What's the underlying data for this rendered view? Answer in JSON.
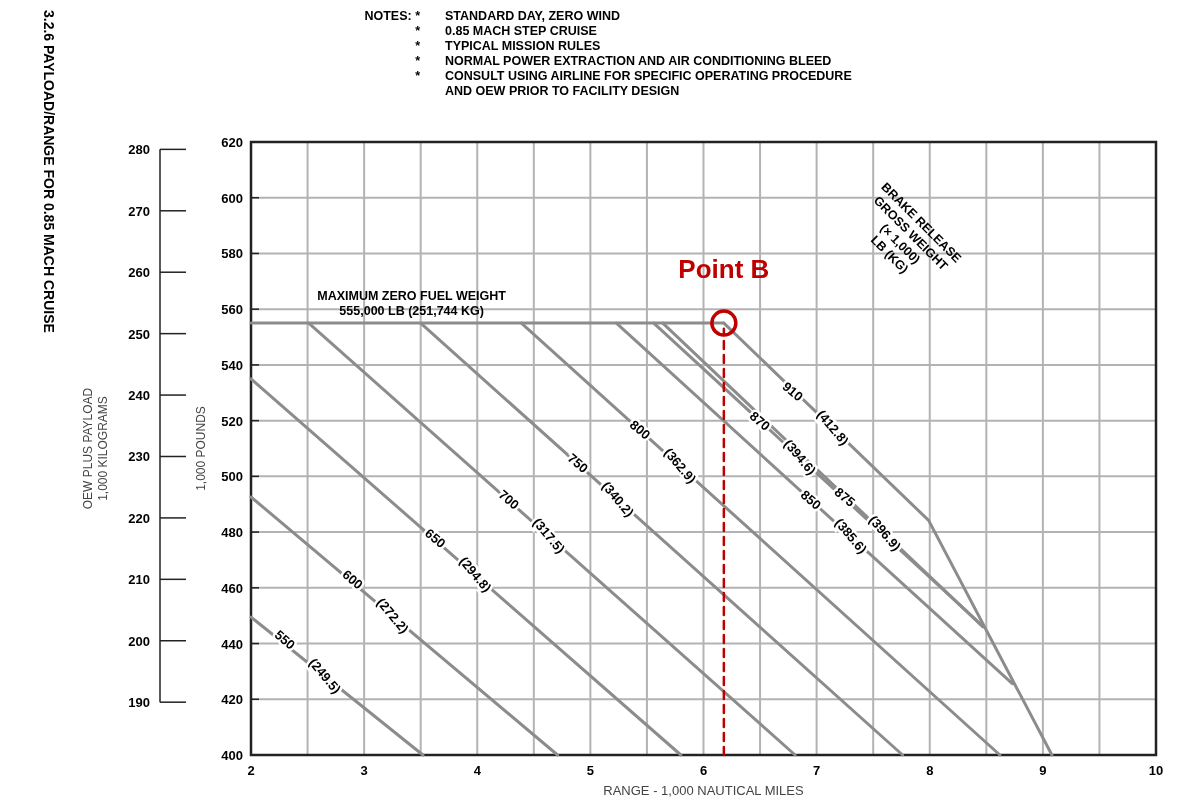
{
  "chart_data": {
    "type": "line",
    "title": "3.2.6 PAYLOAD/RANGE FOR 0.85 MACH CRUISE",
    "xlabel": "RANGE - 1,000 NAUTICAL MILES",
    "ylabel": "1,000 POUNDS",
    "y2label": "OEW PLUS PAYLOAD\n1,000 KILOGRAMS",
    "legend_title": "BRAKE RELEASE\nGROSS WEIGHT\n(× 1,000)\nLB (KG)",
    "xlim": [
      2,
      10
    ],
    "xticks": [
      2,
      {
        "value": 2.5,
        "label": null
      },
      3,
      {
        "value": 3.5,
        "label": null
      },
      4,
      {
        "value": 4.5,
        "label": null
      },
      5,
      {
        "value": 5.5,
        "label": null
      },
      6,
      {
        "value": 6.5,
        "label": null
      },
      7,
      {
        "value": 7.5,
        "label": null
      },
      8,
      {
        "value": 8.5,
        "label": null
      },
      9,
      {
        "value": 9.5,
        "label": null
      },
      10
    ],
    "ylim": [
      400,
      620
    ],
    "yticks": [
      400,
      420,
      440,
      460,
      480,
      500,
      520,
      540,
      560,
      580,
      600,
      620
    ],
    "y2lim": [
      181.4,
      281.2
    ],
    "y2ticks": [
      190,
      200,
      210,
      220,
      230,
      240,
      250,
      260,
      270,
      280
    ],
    "grid": true,
    "legend": false,
    "line_style": "solid",
    "series": [
      {
        "name": "550",
        "color": "#8c8c8c",
        "x": [
          2,
          3.52
        ],
        "values": [
          449.5,
          400
        ]
      },
      {
        "name": "600",
        "color": "#8c8c8c",
        "x": [
          2,
          4.71
        ],
        "values": [
          492.6,
          400
        ]
      },
      {
        "name": "650",
        "color": "#8c8c8c",
        "x": [
          2,
          5.8
        ],
        "values": [
          535,
          400
        ]
      },
      {
        "name": "700",
        "color": "#8c8c8c",
        "x": [
          2.51,
          6.81
        ],
        "values": [
          555,
          400
        ]
      },
      {
        "name": "750",
        "color": "#8c8c8c",
        "x": [
          3.5,
          7.76
        ],
        "values": [
          555,
          400
        ]
      },
      {
        "name": "800",
        "color": "#8c8c8c",
        "x": [
          4.39,
          8.62
        ],
        "values": [
          555,
          400
        ]
      },
      {
        "name": "850",
        "color": "#8c8c8c",
        "x": [
          5.23,
          8.73
        ],
        "values": [
          555,
          425.6
        ]
      },
      {
        "name": "870",
        "color": "#8c8c8c",
        "x": [
          5.56,
          8.45
        ],
        "values": [
          555,
          447
        ]
      },
      {
        "name": "875",
        "color": "#8c8c8c",
        "x": [
          5.64,
          8.47
        ],
        "values": [
          555,
          446
        ]
      },
      {
        "name": "910",
        "color": "#8c8c8c",
        "x": [
          6.18,
          7.99,
          9.08
        ],
        "values": [
          555,
          484.2,
          400
        ]
      },
      {
        "color": "#8c8c8c",
        "x": [
          2,
          6.18
        ],
        "values": [
          555,
          555
        ]
      },
      {
        "color": "#c00000",
        "x": [
          6.18,
          6.18
        ],
        "values": [
          400,
          553
        ],
        "line_style": "dashed"
      },
      {
        "type": "scatter",
        "name": "Point B",
        "color": "#c00000",
        "marker": "circle",
        "x": [
          6.18
        ],
        "values": [
          555
        ]
      }
    ],
    "annotations": [
      {
        "text": "(249.5)",
        "x": 2.65,
        "y": 428.3
      },
      {
        "text": "(272.2)",
        "x": 3.25,
        "y": 449.9
      },
      {
        "text": "(294.8)",
        "x": 3.98,
        "y": 464.7
      },
      {
        "text": "(317.5)",
        "x": 4.63,
        "y": 478.6
      },
      {
        "text": "(340.2)",
        "x": 5.24,
        "y": 491.7
      },
      {
        "text": "(362.9)",
        "x": 5.79,
        "y": 503.7
      },
      {
        "text": "(385.6)",
        "x": 7.3,
        "y": 478.5
      },
      {
        "text": "(394.6)",
        "x": 6.85,
        "y": 506.8
      },
      {
        "text": "(396.9)",
        "x": 7.6,
        "y": 479.5
      },
      {
        "text": "(412.8)",
        "x": 7.14,
        "y": 517.4
      },
      {
        "text": "MAXIMUM ZERO FUEL WEIGHT\n555,000 LB (251,744 KG)",
        "x": 3.42,
        "y": 555
      },
      "NOTES: *\tSTANDARD DAY, ZERO WIND\n*\t0.85 MACH STEP CRUISE\n*\tTYPICAL MISSION RULES\n*\tNORMAL POWER EXTRACTION AND AIR CONDITIONING BLEED\n*\tCONSULT USING AIRLINE FOR SPECIFIC OPERATING PROCEDURE\n\tAND OEW PRIOR TO FACILITY DESIGN"
    ]
  }
}
